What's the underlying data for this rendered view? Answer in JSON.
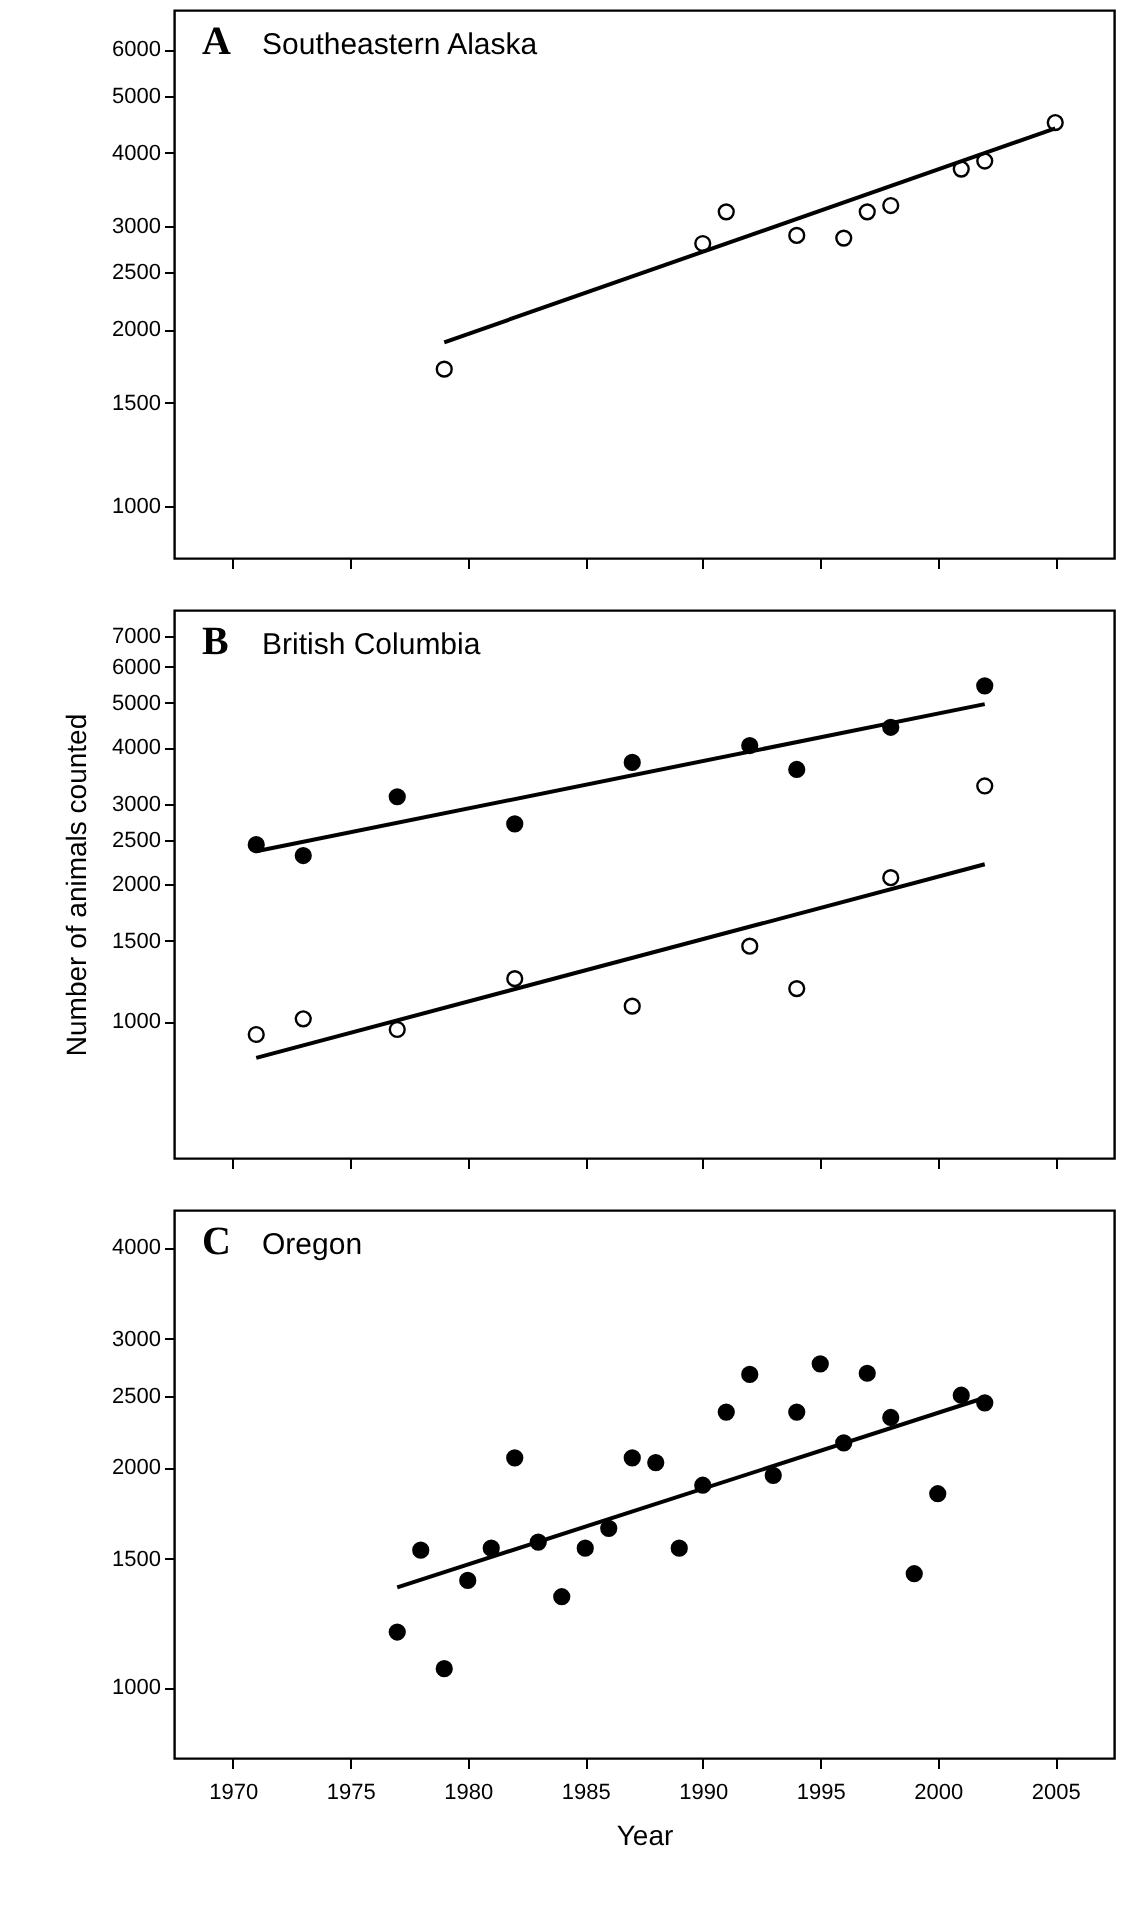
{
  "chart_data": [
    {
      "type": "scatter",
      "title": "A",
      "subtitle": "Southeastern Alaska",
      "xlim": [
        1967.5,
        2007.5
      ],
      "xticks": [
        1970,
        1975,
        1980,
        1985,
        1990,
        1995,
        2000,
        2005
      ],
      "ylim": [
        815,
        7000
      ],
      "yticks": [
        1000,
        1500,
        2000,
        2500,
        3000,
        4000,
        5000,
        6000
      ],
      "log": true,
      "marker": "circle",
      "tick_labels": "y",
      "series": [
        {
          "color": "#ffffff",
          "x": [
            1979,
            1990,
            1991,
            1994,
            1996,
            1997,
            1998,
            2001,
            2002,
            2005
          ],
          "values": [
            1710,
            2800,
            3170,
            2890,
            2860,
            3170,
            3250,
            3750,
            3870,
            4500
          ]
        },
        {
          "type": "line",
          "marker": "none",
          "color": "#000000",
          "x": [
            1979,
            2005
          ],
          "values": [
            1900,
            4400
          ]
        }
      ]
    },
    {
      "type": "scatter",
      "title": "B",
      "subtitle": "British Columbia",
      "ylabel": "Number of animals counted",
      "xlim": [
        1967.5,
        2007.5
      ],
      "xticks": [
        1970,
        1975,
        1980,
        1985,
        1990,
        1995,
        2000,
        2005
      ],
      "ylim": [
        500,
        8000
      ],
      "yticks": [
        1000,
        1500,
        2000,
        2500,
        3000,
        4000,
        5000,
        6000,
        7000
      ],
      "log": true,
      "marker": "circle",
      "tick_labels": "y",
      "series": [
        {
          "color": "#000000",
          "x": [
            1971,
            1973,
            1977,
            1982,
            1987,
            1992,
            1994,
            1998,
            2002
          ],
          "values": [
            2440,
            2310,
            3110,
            2710,
            3700,
            4030,
            3570,
            4420,
            5450
          ]
        },
        {
          "color": "#ffffff",
          "x": [
            1971,
            1973,
            1977,
            1982,
            1987,
            1992,
            1994,
            1998,
            2002
          ],
          "values": [
            934,
            1011,
            958,
            1239,
            1078,
            1460,
            1178,
            2065,
            3284
          ]
        },
        {
          "type": "line",
          "marker": "none",
          "color": "#000000",
          "x": [
            1971,
            2002
          ],
          "values": [
            2360,
            4970
          ]
        },
        {
          "type": "line",
          "marker": "none",
          "color": "#000000",
          "x": [
            1971,
            2002
          ],
          "values": [
            830,
            2210
          ]
        }
      ]
    },
    {
      "type": "scatter",
      "title": "C",
      "subtitle": "Oregon",
      "xlabel": "Year",
      "xlim": [
        1967.5,
        2007.5
      ],
      "xticks": [
        1970,
        1975,
        1980,
        1985,
        1990,
        1995,
        2000,
        2005
      ],
      "ylim": [
        800,
        4500
      ],
      "yticks": [
        1000,
        1500,
        2000,
        2500,
        3000,
        4000
      ],
      "log": true,
      "marker": "circle",
      "series": [
        {
          "color": "#000000",
          "x": [
            1977,
            1978,
            1979,
            1980,
            1981,
            1982,
            1983,
            1984,
            1985,
            1986,
            1987,
            1988,
            1989,
            1990,
            1991,
            1992,
            1993,
            1994,
            1995,
            1996,
            1997,
            1998,
            1999,
            2000,
            2001,
            2002
          ],
          "values": [
            1190,
            1540,
            1060,
            1400,
            1550,
            2060,
            1580,
            1330,
            1550,
            1650,
            2060,
            2030,
            1550,
            1890,
            2380,
            2680,
            1950,
            2380,
            2770,
            2160,
            2690,
            2340,
            1430,
            1840,
            2510,
            2450
          ]
        },
        {
          "type": "line",
          "marker": "none",
          "color": "#000000",
          "x": [
            1977,
            2002
          ],
          "values": [
            1370,
            2490
          ]
        }
      ]
    }
  ]
}
